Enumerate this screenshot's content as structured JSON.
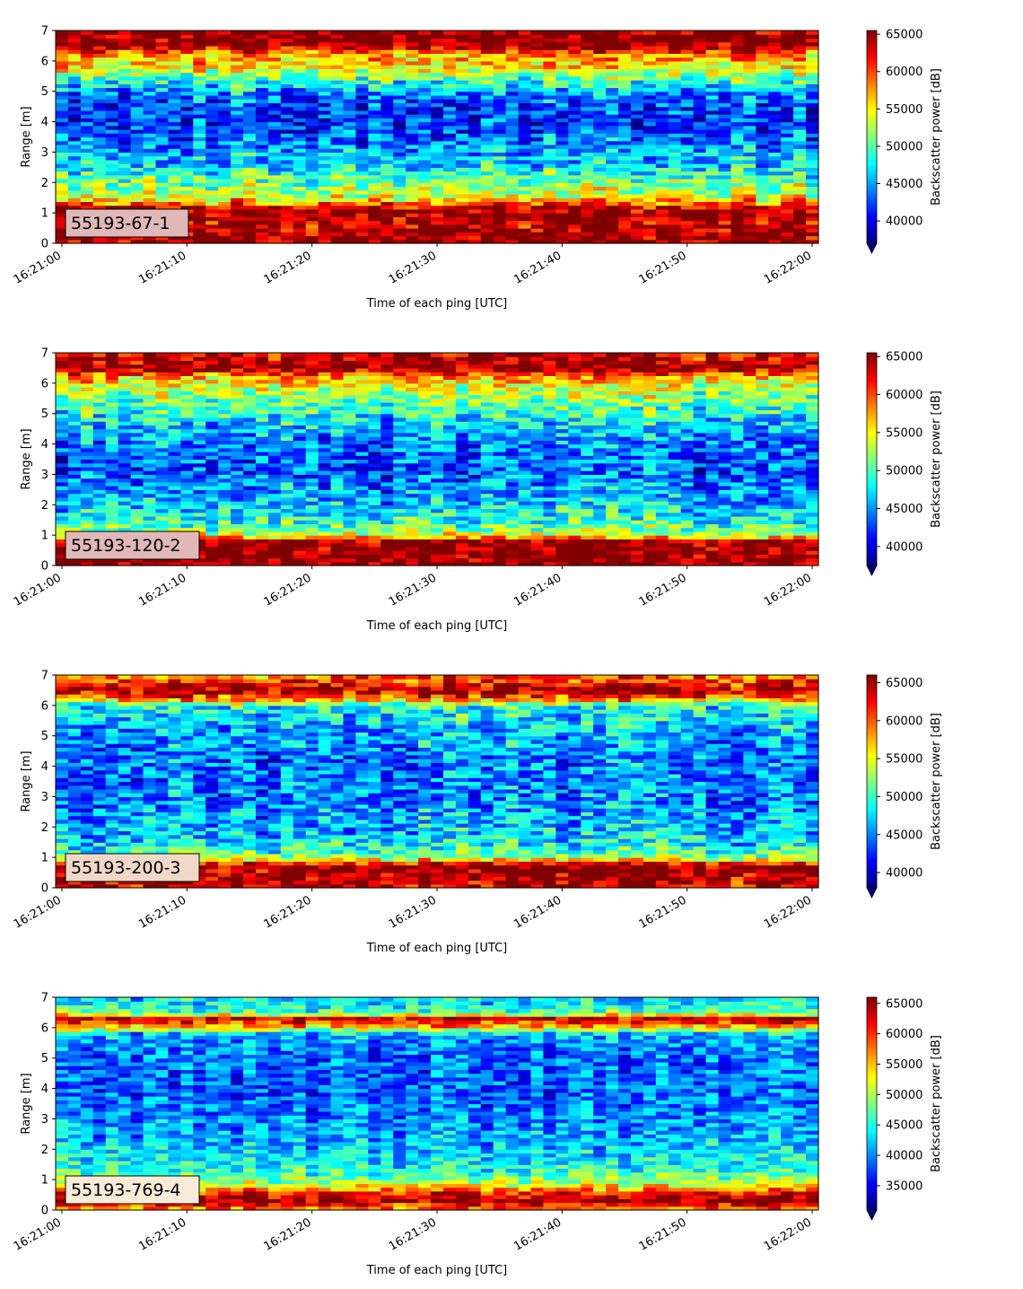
{
  "chart_data": [
    {
      "type": "heatmap",
      "label": "55193-67-1",
      "xlabel": "Time of each ping [UTC]",
      "ylabel": "Range [m]",
      "colorbar_label": "Backscatter power [dB]",
      "colormap": "jet",
      "xlim": [
        "16:20:59.5",
        "16:22:00.5"
      ],
      "xticks": [
        "16:21:00",
        "16:21:10",
        "16:21:20",
        "16:21:30",
        "16:21:40",
        "16:21:50",
        "16:22:00"
      ],
      "ylim": [
        0,
        7
      ],
      "yticks": [
        0,
        1,
        2,
        3,
        4,
        5,
        6,
        7
      ],
      "vmin": 37000,
      "vmax": 65500,
      "cticks": [
        40000,
        45000,
        50000,
        55000,
        60000,
        65000
      ],
      "colorbar_extend": "min",
      "label_box_color": "#e0b8b8",
      "profile": {
        "range_m": [
          0.1,
          0.3,
          0.6,
          0.9,
          1.15,
          1.35,
          1.6,
          2.0,
          2.5,
          3.0,
          3.5,
          4.0,
          4.5,
          5.0,
          5.4,
          5.8,
          6.2,
          6.5,
          6.9
        ],
        "level": [
          65500,
          65500,
          63500,
          65500,
          64500,
          58000,
          53000,
          51500,
          47000,
          45500,
          43500,
          42000,
          42500,
          45000,
          50000,
          55500,
          57500,
          65500,
          65500
        ]
      }
    },
    {
      "type": "heatmap",
      "label": "55193-120-2",
      "xlabel": "Time of each ping [UTC]",
      "ylabel": "Range [m]",
      "colorbar_label": "Backscatter power [dB]",
      "colormap": "jet",
      "xlim": [
        "16:20:59.5",
        "16:22:00.5"
      ],
      "xticks": [
        "16:21:00",
        "16:21:10",
        "16:21:20",
        "16:21:30",
        "16:21:40",
        "16:21:50",
        "16:22:00"
      ],
      "ylim": [
        0,
        7
      ],
      "yticks": [
        0,
        1,
        2,
        3,
        4,
        5,
        6,
        7
      ],
      "vmin": 37500,
      "vmax": 65500,
      "cticks": [
        40000,
        45000,
        50000,
        55000,
        60000,
        65000
      ],
      "colorbar_extend": "min",
      "label_box_color": "#e0b8b8",
      "profile": {
        "range_m": [
          0.1,
          0.4,
          0.8,
          0.95,
          1.2,
          1.6,
          2.0,
          2.5,
          3.0,
          3.5,
          4.0,
          4.5,
          5.0,
          5.5,
          5.9,
          6.2,
          6.5,
          6.9
        ],
        "level": [
          65500,
          65500,
          65500,
          57000,
          51000,
          48000,
          46500,
          45000,
          43500,
          43500,
          44500,
          46000,
          48500,
          51500,
          53500,
          57000,
          65500,
          63000
        ]
      }
    },
    {
      "type": "heatmap",
      "label": "55193-200-3",
      "xlabel": "Time of each ping [UTC]",
      "ylabel": "Range [m]",
      "colorbar_label": "Backscatter power [dB]",
      "colormap": "jet",
      "xlim": [
        "16:20:59.5",
        "16:22:00.5"
      ],
      "xticks": [
        "16:21:00",
        "16:21:10",
        "16:21:20",
        "16:21:30",
        "16:21:40",
        "16:21:50",
        "16:22:00"
      ],
      "ylim": [
        0,
        7
      ],
      "yticks": [
        0,
        1,
        2,
        3,
        4,
        5,
        6,
        7
      ],
      "vmin": 38000,
      "vmax": 66000,
      "cticks": [
        40000,
        45000,
        50000,
        55000,
        60000,
        65000
      ],
      "colorbar_extend": "min",
      "label_box_color": "#f0d8c8",
      "profile": {
        "range_m": [
          0.1,
          0.4,
          0.75,
          0.9,
          1.1,
          1.5,
          2.0,
          2.5,
          3.0,
          3.5,
          4.0,
          4.5,
          5.0,
          5.5,
          6.0,
          6.2,
          6.5,
          6.9
        ],
        "level": [
          64000,
          65500,
          65500,
          57000,
          51000,
          48000,
          46500,
          45500,
          45000,
          45000,
          45000,
          45000,
          46000,
          47500,
          49000,
          58000,
          65500,
          60000
        ]
      }
    },
    {
      "type": "heatmap",
      "label": "55193-769-4",
      "xlabel": "Time of each ping [UTC]",
      "ylabel": "Range [m]",
      "colorbar_label": "Backscatter power [dB]",
      "colormap": "jet",
      "xlim": [
        "16:20:59.5",
        "16:22:00.5"
      ],
      "xticks": [
        "16:21:00",
        "16:21:10",
        "16:21:20",
        "16:21:30",
        "16:21:40",
        "16:21:50",
        "16:22:00"
      ],
      "ylim": [
        0,
        7
      ],
      "yticks": [
        0,
        1,
        2,
        3,
        4,
        5,
        6,
        7
      ],
      "vmin": 31000,
      "vmax": 66000,
      "cticks": [
        35000,
        40000,
        45000,
        50000,
        55000,
        60000,
        65000
      ],
      "colorbar_extend": "min",
      "label_box_color": "#f8ecd8",
      "profile": {
        "range_m": [
          0.1,
          0.3,
          0.5,
          0.7,
          0.9,
          1.2,
          1.6,
          2.0,
          2.5,
          3.0,
          3.5,
          4.0,
          4.5,
          5.0,
          5.5,
          5.8,
          6.1,
          6.3,
          6.5,
          6.9
        ],
        "level": [
          58000,
          65500,
          63000,
          56000,
          50000,
          46000,
          44000,
          42500,
          41000,
          40000,
          39000,
          38500,
          38500,
          39000,
          40000,
          42000,
          58000,
          64000,
          47000,
          43000
        ]
      }
    }
  ]
}
